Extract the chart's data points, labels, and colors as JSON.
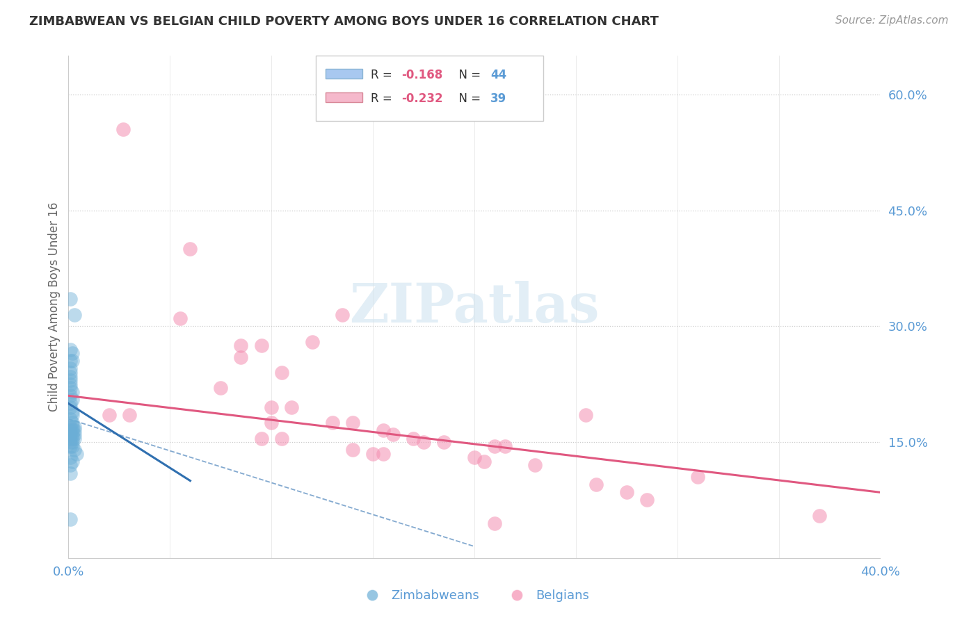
{
  "title": "ZIMBABWEAN VS BELGIAN CHILD POVERTY AMONG BOYS UNDER 16 CORRELATION CHART",
  "source": "Source: ZipAtlas.com",
  "ylabel": "Child Poverty Among Boys Under 16",
  "xlim": [
    0.0,
    0.4
  ],
  "ylim": [
    0.0,
    0.65
  ],
  "yticks": [
    0.15,
    0.3,
    0.45,
    0.6
  ],
  "ytick_labels": [
    "15.0%",
    "30.0%",
    "45.0%",
    "60.0%"
  ],
  "xtick_positions": [
    0.0,
    0.05,
    0.1,
    0.15,
    0.2,
    0.25,
    0.3,
    0.35,
    0.4
  ],
  "xtick_labels_show": [
    "0.0%",
    "",
    "",
    "",
    "",
    "",
    "",
    "",
    "40.0%"
  ],
  "blue_color": "#6baed6",
  "pink_color": "#f48fb1",
  "blue_line_color": "#3070b0",
  "pink_line_color": "#e05880",
  "axis_label_color": "#5b9bd5",
  "grid_color": "#cccccc",
  "watermark": "ZIPatlas",
  "legend1_r": "R = -0.168",
  "legend1_n": "N = 44",
  "legend2_r": "R = -0.232",
  "legend2_n": "N = 39",
  "legend1_patch_color": "#a8c8f0",
  "legend2_patch_color": "#f5b8cb",
  "zimbabwean_points": [
    [
      0.001,
      0.335
    ],
    [
      0.003,
      0.315
    ],
    [
      0.001,
      0.27
    ],
    [
      0.002,
      0.265
    ],
    [
      0.001,
      0.255
    ],
    [
      0.002,
      0.255
    ],
    [
      0.001,
      0.245
    ],
    [
      0.001,
      0.24
    ],
    [
      0.001,
      0.235
    ],
    [
      0.001,
      0.23
    ],
    [
      0.001,
      0.225
    ],
    [
      0.001,
      0.22
    ],
    [
      0.002,
      0.215
    ],
    [
      0.001,
      0.21
    ],
    [
      0.002,
      0.205
    ],
    [
      0.001,
      0.2
    ],
    [
      0.001,
      0.195
    ],
    [
      0.002,
      0.19
    ],
    [
      0.002,
      0.185
    ],
    [
      0.001,
      0.18
    ],
    [
      0.002,
      0.175
    ],
    [
      0.001,
      0.17
    ],
    [
      0.002,
      0.17
    ],
    [
      0.003,
      0.17
    ],
    [
      0.001,
      0.165
    ],
    [
      0.002,
      0.165
    ],
    [
      0.003,
      0.165
    ],
    [
      0.001,
      0.16
    ],
    [
      0.002,
      0.16
    ],
    [
      0.003,
      0.16
    ],
    [
      0.001,
      0.155
    ],
    [
      0.002,
      0.155
    ],
    [
      0.003,
      0.155
    ],
    [
      0.001,
      0.15
    ],
    [
      0.002,
      0.15
    ],
    [
      0.001,
      0.145
    ],
    [
      0.002,
      0.145
    ],
    [
      0.003,
      0.14
    ],
    [
      0.004,
      0.135
    ],
    [
      0.001,
      0.13
    ],
    [
      0.002,
      0.125
    ],
    [
      0.001,
      0.12
    ],
    [
      0.001,
      0.11
    ],
    [
      0.001,
      0.05
    ]
  ],
  "belgian_points": [
    [
      0.027,
      0.555
    ],
    [
      0.06,
      0.4
    ],
    [
      0.135,
      0.315
    ],
    [
      0.055,
      0.31
    ],
    [
      0.12,
      0.28
    ],
    [
      0.085,
      0.275
    ],
    [
      0.095,
      0.275
    ],
    [
      0.085,
      0.26
    ],
    [
      0.105,
      0.24
    ],
    [
      0.255,
      0.185
    ],
    [
      0.075,
      0.22
    ],
    [
      0.1,
      0.195
    ],
    [
      0.11,
      0.195
    ],
    [
      0.02,
      0.185
    ],
    [
      0.03,
      0.185
    ],
    [
      0.13,
      0.175
    ],
    [
      0.1,
      0.175
    ],
    [
      0.14,
      0.175
    ],
    [
      0.155,
      0.165
    ],
    [
      0.16,
      0.16
    ],
    [
      0.095,
      0.155
    ],
    [
      0.105,
      0.155
    ],
    [
      0.17,
      0.155
    ],
    [
      0.175,
      0.15
    ],
    [
      0.185,
      0.15
    ],
    [
      0.21,
      0.145
    ],
    [
      0.215,
      0.145
    ],
    [
      0.14,
      0.14
    ],
    [
      0.15,
      0.135
    ],
    [
      0.155,
      0.135
    ],
    [
      0.2,
      0.13
    ],
    [
      0.205,
      0.125
    ],
    [
      0.23,
      0.12
    ],
    [
      0.31,
      0.105
    ],
    [
      0.26,
      0.095
    ],
    [
      0.275,
      0.085
    ],
    [
      0.285,
      0.075
    ],
    [
      0.37,
      0.055
    ],
    [
      0.21,
      0.045
    ]
  ],
  "zim_line": [
    [
      0.0,
      0.2
    ],
    [
      0.06,
      0.1
    ]
  ],
  "belg_line": [
    [
      0.0,
      0.21
    ],
    [
      0.4,
      0.085
    ]
  ],
  "dashed_line": [
    [
      0.0,
      0.18
    ],
    [
      0.2,
      0.015
    ]
  ]
}
